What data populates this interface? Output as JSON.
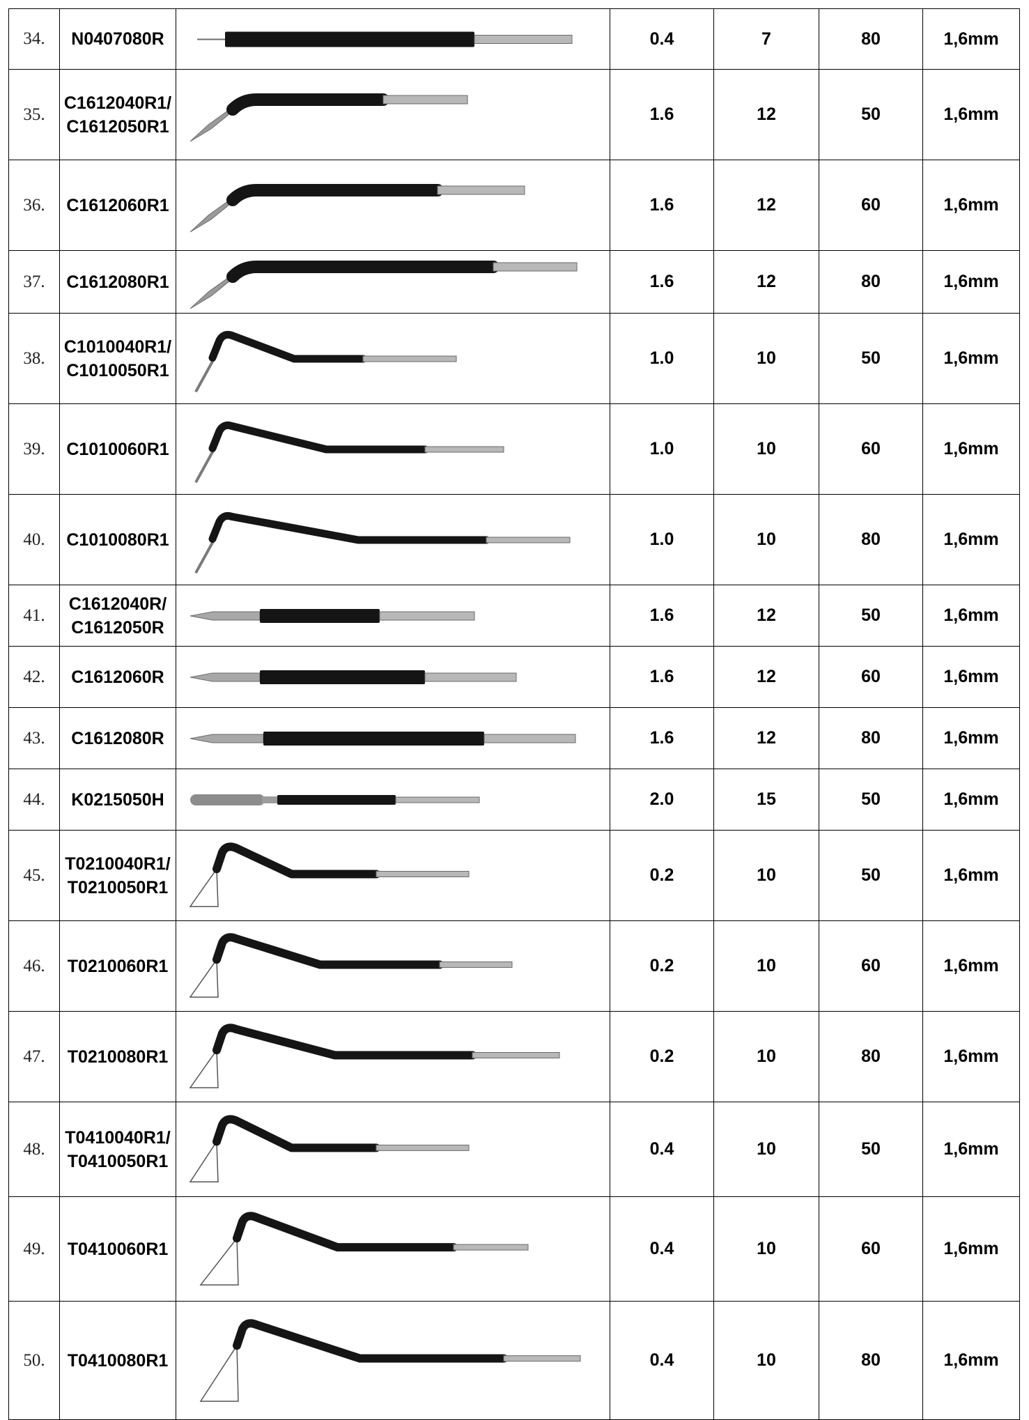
{
  "rows": [
    {
      "no": "34.",
      "codes": [
        "N0407080R"
      ],
      "v1": "0.4",
      "v2": "7",
      "v3": "80",
      "v4": "1,6mm",
      "kind": "needle-straight",
      "icon": "needle-electrode-icon"
    },
    {
      "no": "35.",
      "codes": [
        "C1612040R1/",
        "C1612050R1"
      ],
      "v1": "1.6",
      "v2": "12",
      "v3": "50",
      "v4": "1,6mm",
      "kind": "bent-short",
      "icon": "bent-needle-electrode-icon"
    },
    {
      "no": "36.",
      "codes": [
        "C1612060R1"
      ],
      "v1": "1.6",
      "v2": "12",
      "v3": "60",
      "v4": "1,6mm",
      "kind": "bent-short",
      "icon": "bent-needle-electrode-icon"
    },
    {
      "no": "37.",
      "codes": [
        "C1612080R1"
      ],
      "v1": "1.6",
      "v2": "12",
      "v3": "80",
      "v4": "1,6mm",
      "kind": "bent-short",
      "icon": "bent-needle-electrode-icon"
    },
    {
      "no": "38.",
      "codes": [
        "C1010040R1/",
        "C1010050R1"
      ],
      "v1": "1.0",
      "v2": "10",
      "v3": "50",
      "v4": "1,6mm",
      "kind": "hook",
      "icon": "hooked-needle-electrode-icon"
    },
    {
      "no": "39.",
      "codes": [
        "C1010060R1"
      ],
      "v1": "1.0",
      "v2": "10",
      "v3": "60",
      "v4": "1,6mm",
      "kind": "hook",
      "icon": "hooked-needle-electrode-icon"
    },
    {
      "no": "40.",
      "codes": [
        "C1010080R1"
      ],
      "v1": "1.0",
      "v2": "10",
      "v3": "80",
      "v4": "1,6mm",
      "kind": "hook",
      "icon": "hooked-needle-electrode-icon"
    },
    {
      "no": "41.",
      "codes": [
        "C1612040R/",
        "C1612050R"
      ],
      "v1": "1.6",
      "v2": "12",
      "v3": "50",
      "v4": "1,6mm",
      "kind": "straight-point",
      "icon": "straight-needle-electrode-icon"
    },
    {
      "no": "42.",
      "codes": [
        "C1612060R"
      ],
      "v1": "1.6",
      "v2": "12",
      "v3": "60",
      "v4": "1,6mm",
      "kind": "straight-point",
      "icon": "straight-needle-electrode-icon"
    },
    {
      "no": "43.",
      "codes": [
        "C1612080R"
      ],
      "v1": "1.6",
      "v2": "12",
      "v3": "80",
      "v4": "1,6mm",
      "kind": "straight-point",
      "icon": "straight-needle-electrode-icon"
    },
    {
      "no": "44.",
      "codes": [
        "K0215050H"
      ],
      "v1": "2.0",
      "v2": "15",
      "v3": "50",
      "v4": "1,6mm",
      "kind": "ball",
      "icon": "ball-electrode-icon"
    },
    {
      "no": "45.",
      "codes": [
        "T0210040R1/",
        "T0210050R1"
      ],
      "v1": "0.2",
      "v2": "10",
      "v3": "50",
      "v4": "1,6mm",
      "kind": "loop",
      "icon": "triangle-loop-electrode-icon"
    },
    {
      "no": "46.",
      "codes": [
        "T0210060R1"
      ],
      "v1": "0.2",
      "v2": "10",
      "v3": "60",
      "v4": "1,6mm",
      "kind": "loop",
      "icon": "triangle-loop-electrode-icon"
    },
    {
      "no": "47.",
      "codes": [
        "T0210080R1"
      ],
      "v1": "0.2",
      "v2": "10",
      "v3": "80",
      "v4": "1,6mm",
      "kind": "loop",
      "icon": "triangle-loop-electrode-icon"
    },
    {
      "no": "48.",
      "codes": [
        "T0410040R1/",
        "T0410050R1"
      ],
      "v1": "0.4",
      "v2": "10",
      "v3": "50",
      "v4": "1,6mm",
      "kind": "loop",
      "icon": "triangle-loop-electrode-icon"
    },
    {
      "no": "49.",
      "codes": [
        "T0410060R1"
      ],
      "v1": "0.4",
      "v2": "10",
      "v3": "60",
      "v4": "1,6mm",
      "kind": "loop",
      "icon": "triangle-loop-electrode-icon"
    },
    {
      "no": "50.",
      "codes": [
        "T0410080R1"
      ],
      "v1": "0.4",
      "v2": "10",
      "v3": "80",
      "v4": "1,6mm",
      "kind": "loop",
      "icon": "triangle-loop-electrode-icon"
    }
  ]
}
